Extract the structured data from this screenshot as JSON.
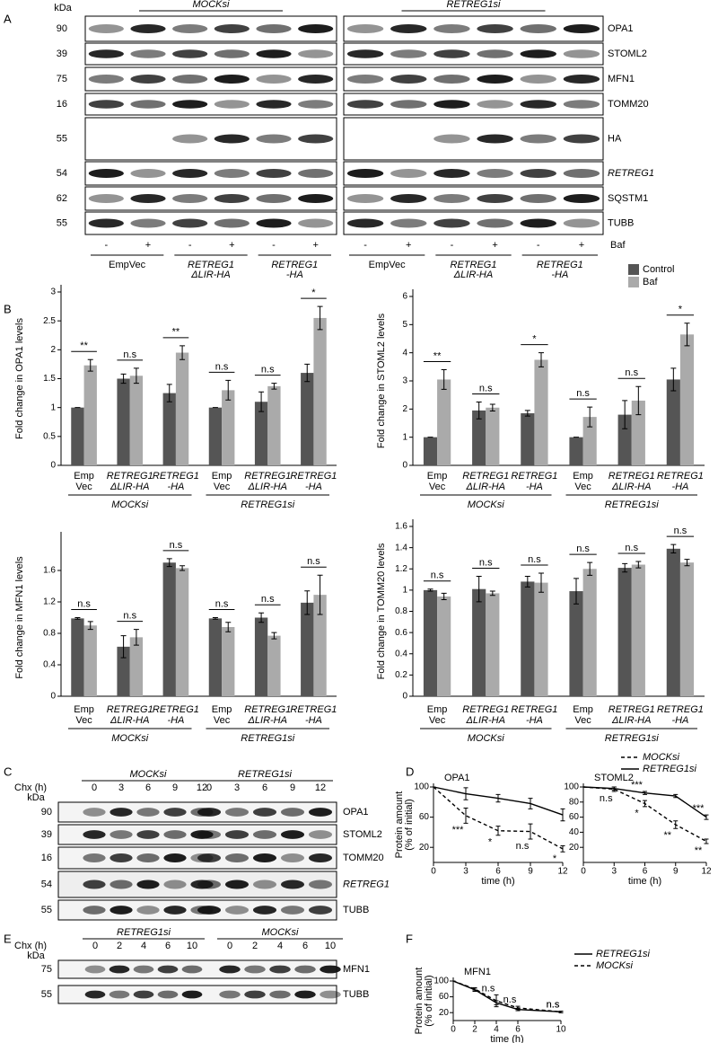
{
  "panel_labels": [
    "A",
    "B",
    "C",
    "D",
    "E",
    "F"
  ],
  "blot_a": {
    "kda_unit": "kDa",
    "titles": [
      "MOCKsi",
      "RETREG1si"
    ],
    "rows": [
      {
        "protein": "OPA1",
        "kda": 90
      },
      {
        "protein": "STOML2",
        "kda": 39
      },
      {
        "protein": "MFN1",
        "kda": 75
      },
      {
        "protein": "TOMM20",
        "kda": 16
      },
      {
        "protein": "HA",
        "kda": 55
      },
      {
        "protein": "RETREG1",
        "kda": 54
      },
      {
        "protein": "SQSTM1",
        "kda": 62
      },
      {
        "protein": "TUBB",
        "kda": 55
      }
    ],
    "treatment": [
      "-",
      "+",
      "-",
      "+",
      "-",
      "+"
    ],
    "treatment_name": "Baf",
    "groups": [
      [
        "EmpVec"
      ],
      [
        "RETREG1",
        "ΔLIR-HA"
      ],
      [
        "RETREG1",
        "-HA"
      ]
    ]
  },
  "blot_c": {
    "time_label": "Chx (h)",
    "kda_unit": "kDa",
    "groups": [
      "MOCKsi",
      "RETREG1si"
    ],
    "times": [
      0,
      3,
      6,
      9,
      12
    ],
    "rows": [
      {
        "protein": "OPA1",
        "kda": 90
      },
      {
        "protein": "STOML2",
        "kda": 39
      },
      {
        "protein": "TOMM20",
        "kda": 16
      },
      {
        "protein": "RETREG1",
        "kda": 54
      },
      {
        "protein": "TUBB",
        "kda": 55
      }
    ]
  },
  "blot_e": {
    "time_label": "Chx (h)",
    "kda_unit": "kDa",
    "groups": [
      "RETREG1si",
      "MOCKsi"
    ],
    "times": [
      0,
      2,
      4,
      6,
      10
    ],
    "rows": [
      {
        "protein": "MFN1",
        "kda": 75
      },
      {
        "protein": "TUBB",
        "kda": 55
      }
    ]
  },
  "chart_data": [
    {
      "type": "bar",
      "ylabel": "Fold change in OPA1 levels",
      "categories": [
        [
          "Emp",
          "Vec"
        ],
        [
          "RETREG1",
          "ΔLIR-HA"
        ],
        [
          "RETREG1",
          "-HA"
        ],
        [
          "Emp",
          "Vec"
        ],
        [
          "RETREG1",
          "ΔLIR-HA"
        ],
        [
          "RETREG1",
          "-HA"
        ]
      ],
      "groups": [
        "MOCKsi",
        "RETREG1si"
      ],
      "series": [
        {
          "name": "Control",
          "color": "#555555",
          "values": [
            1,
            1.5,
            1.25,
            1,
            1.1,
            1.6
          ],
          "errors": [
            0,
            0.08,
            0.15,
            0,
            0.17,
            0.15
          ]
        },
        {
          "name": "Baf",
          "color": "#aaaaaa",
          "values": [
            1.73,
            1.55,
            1.95,
            1.3,
            1.37,
            2.55
          ],
          "errors": [
            0.1,
            0.13,
            0.12,
            0.17,
            0.05,
            0.2
          ]
        }
      ],
      "significance": [
        "**",
        "n.s",
        "**",
        "n.s",
        "n.s",
        "*"
      ],
      "ylim": [
        0,
        3
      ],
      "yticks": [
        0,
        0.5,
        1,
        1.5,
        2,
        2.5,
        3
      ],
      "legend": false
    },
    {
      "type": "bar",
      "ylabel": "Fold change in STOML2 levels",
      "categories": [
        [
          "Emp",
          "Vec"
        ],
        [
          "RETREG1",
          "ΔLIR-HA"
        ],
        [
          "RETREG1",
          "-HA"
        ],
        [
          "Emp",
          "Vec"
        ],
        [
          "RETREG1",
          "ΔLIR-HA"
        ],
        [
          "RETREG1",
          "-HA"
        ]
      ],
      "groups": [
        "MOCKsi",
        "RETREG1si"
      ],
      "series": [
        {
          "name": "Control",
          "color": "#555555",
          "values": [
            1,
            1.95,
            1.85,
            1,
            1.8,
            3.05
          ],
          "errors": [
            0,
            0.3,
            0.1,
            0,
            0.5,
            0.4
          ]
        },
        {
          "name": "Baf",
          "color": "#aaaaaa",
          "values": [
            3.05,
            2.05,
            3.75,
            1.72,
            2.3,
            4.65
          ],
          "errors": [
            0.35,
            0.12,
            0.25,
            0.35,
            0.5,
            0.4
          ]
        }
      ],
      "significance": [
        "**",
        "n.s",
        "*",
        "n.s",
        "n.s",
        "*"
      ],
      "ylim": [
        0,
        6
      ],
      "yticks": [
        0,
        1,
        2,
        3,
        4,
        5,
        6
      ],
      "legend": true
    },
    {
      "type": "bar",
      "ylabel": "Fold change in MFN1 levels",
      "categories": [
        [
          "Emp",
          "Vec"
        ],
        [
          "RETREG1",
          "ΔLIR-HA"
        ],
        [
          "RETREG1",
          "-HA"
        ],
        [
          "Emp",
          "Vec"
        ],
        [
          "RETREG1",
          "ΔLIR-HA"
        ],
        [
          "RETREG1",
          "-HA"
        ]
      ],
      "groups": [
        "MOCKsi",
        "RETREG1si"
      ],
      "series": [
        {
          "name": "Control",
          "color": "#555555",
          "values": [
            0.99,
            0.63,
            1.7,
            0.99,
            1,
            1.19
          ],
          "errors": [
            0.01,
            0.14,
            0.05,
            0.01,
            0.06,
            0.15
          ]
        },
        {
          "name": "Baf",
          "color": "#aaaaaa",
          "values": [
            0.9,
            0.75,
            1.63,
            0.88,
            0.77,
            1.29
          ],
          "errors": [
            0.05,
            0.1,
            0.03,
            0.06,
            0.04,
            0.25
          ]
        }
      ],
      "significance": [
        "n.s",
        "n.s",
        "n.s",
        "n.s",
        "n.s",
        "n.s"
      ],
      "ylim": [
        0,
        2
      ],
      "yticks": [
        0,
        0.4,
        0.8,
        1.2,
        1.6
      ],
      "legend": false
    },
    {
      "type": "bar",
      "ylabel": "Fold change in TOMM20 levels",
      "categories": [
        [
          "Emp",
          "Vec"
        ],
        [
          "RETREG1",
          "ΔLIR-HA"
        ],
        [
          "RETREG1",
          "-HA"
        ],
        [
          "Emp",
          "Vec"
        ],
        [
          "RETREG1",
          "ΔLIR-HA"
        ],
        [
          "RETREG1",
          "-HA"
        ]
      ],
      "groups": [
        "MOCKsi",
        "RETREG1si"
      ],
      "series": [
        {
          "name": "Control",
          "color": "#555555",
          "values": [
            1,
            1.01,
            1.08,
            0.99,
            1.21,
            1.39
          ],
          "errors": [
            0.01,
            0.12,
            0.05,
            0.12,
            0.04,
            0.04
          ]
        },
        {
          "name": "Baf",
          "color": "#aaaaaa",
          "values": [
            0.94,
            0.97,
            1.07,
            1.2,
            1.24,
            1.26
          ],
          "errors": [
            0.03,
            0.02,
            0.09,
            0.06,
            0.03,
            0.03
          ]
        }
      ],
      "significance": [
        "n.s",
        "n.s",
        "n.s",
        "n.s",
        "n.s",
        "n.s"
      ],
      "ylim": [
        0,
        1.6
      ],
      "yticks": [
        0,
        0.2,
        0.4,
        0.6,
        0.8,
        1,
        1.2,
        1.4,
        1.6
      ],
      "legend": false
    },
    {
      "type": "line",
      "title": "OPA1",
      "xlabel": "time (h)",
      "ylabel": [
        "Protein amount",
        "(% of initial)"
      ],
      "x": [
        0,
        3,
        6,
        9,
        12
      ],
      "xlim": [
        0,
        12
      ],
      "xticks": [
        0,
        3,
        6,
        9,
        12
      ],
      "ylim": [
        0,
        100
      ],
      "yticks": [
        20,
        60,
        100
      ],
      "series": [
        {
          "name": "MOCKsi",
          "color": "#000000",
          "line_style": "dashed",
          "values": [
            100,
            62,
            42,
            41,
            18
          ],
          "errors": [
            0,
            10,
            6,
            10,
            4
          ],
          "significance": [
            null,
            "***",
            "*",
            "n.s",
            "*"
          ]
        },
        {
          "name": "RETREG1si",
          "color": "#000000",
          "line_style": "solid",
          "values": [
            100,
            91,
            85,
            78,
            63
          ],
          "errors": [
            0,
            8,
            5,
            7,
            8
          ],
          "significance": [
            null,
            null,
            null,
            null,
            null
          ]
        }
      ],
      "legend": false
    },
    {
      "type": "line",
      "title": "STOML2",
      "xlabel": "time (h)",
      "x": [
        0,
        3,
        6,
        9,
        12
      ],
      "xlim": [
        0,
        12
      ],
      "xticks": [
        0,
        3,
        6,
        9,
        12
      ],
      "ylim": [
        0,
        100
      ],
      "yticks": [
        20,
        40,
        60,
        80,
        100
      ],
      "series": [
        {
          "name": "MOCKsi",
          "color": "#000000",
          "line_style": "dashed",
          "values": [
            100,
            97,
            78,
            50,
            28
          ],
          "errors": [
            0,
            3,
            4,
            5,
            3
          ],
          "significance": [
            null,
            "n.s",
            "*",
            "**",
            "**"
          ]
        },
        {
          "name": "RETREG1si",
          "color": "#000000",
          "line_style": "solid",
          "values": [
            100,
            98,
            92,
            88,
            60
          ],
          "errors": [
            0,
            2,
            2,
            2,
            3
          ],
          "significance": [
            null,
            null,
            "***",
            null,
            "***"
          ]
        }
      ],
      "legend": true
    },
    {
      "type": "line",
      "title": "MFN1",
      "xlabel": "time (h)",
      "ylabel": [
        "Protein amount",
        "(% of initial)"
      ],
      "x": [
        0,
        2,
        4,
        6,
        10
      ],
      "xlim": [
        0,
        10
      ],
      "xticks": [
        0,
        2,
        4,
        6,
        10
      ],
      "ylim": [
        0,
        100
      ],
      "yticks": [
        20,
        60,
        100
      ],
      "series": [
        {
          "name": "RETREG1si",
          "color": "#000000",
          "line_style": "solid",
          "values": [
            100,
            78,
            45,
            28,
            22
          ],
          "errors": [
            0,
            4,
            5,
            3,
            2
          ],
          "significance": [
            null,
            null,
            null,
            null,
            "n.s"
          ]
        },
        {
          "name": "MOCKsi",
          "color": "#000000",
          "line_style": "dashed",
          "values": [
            100,
            80,
            50,
            32,
            22
          ],
          "errors": [
            0,
            3,
            15,
            4,
            2
          ],
          "significance": [
            null,
            null,
            "n.s",
            "n.s",
            "n.s"
          ]
        }
      ],
      "legend": true
    }
  ]
}
